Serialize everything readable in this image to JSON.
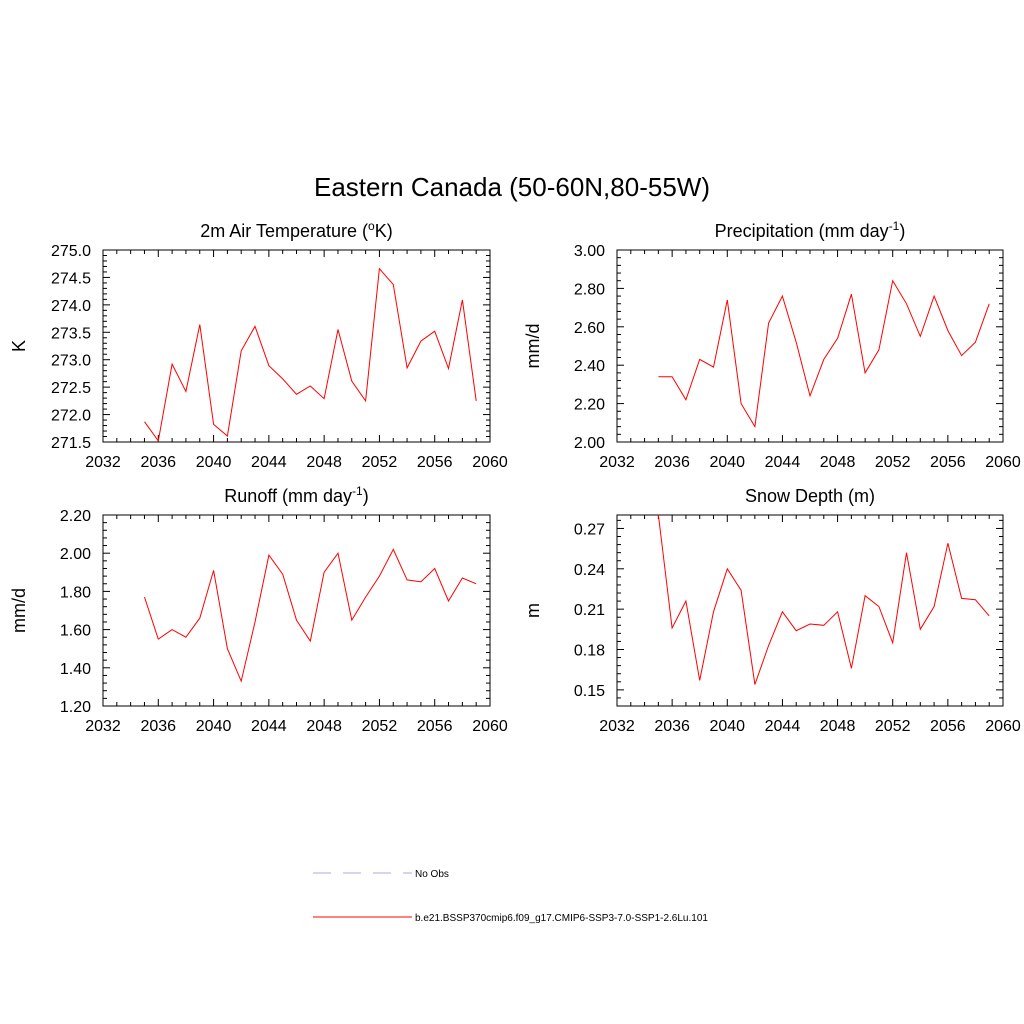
{
  "figure_title": "Eastern Canada (50-60N,80-55W)",
  "chart_data": [
    {
      "type": "line",
      "title": {
        "main": "2m Air Temperature (",
        "sup": "o",
        "tail": "K)"
      },
      "ylabel": "K",
      "xlim": [
        2032,
        2060
      ],
      "ylim": [
        271.5,
        275.0
      ],
      "xticks": [
        2032,
        2036,
        2040,
        2044,
        2048,
        2052,
        2056,
        2060
      ],
      "yticks": [
        271.5,
        272.0,
        272.5,
        273.0,
        273.5,
        274.0,
        274.5,
        275.0
      ],
      "ytick_labels": [
        "271.5",
        "272.0",
        "272.5",
        "273.0",
        "273.5",
        "274.0",
        "274.5",
        "275.0"
      ],
      "x": [
        2035,
        2036,
        2037,
        2038,
        2039,
        2040,
        2041,
        2042,
        2043,
        2044,
        2045,
        2046,
        2047,
        2048,
        2049,
        2050,
        2051,
        2052,
        2053,
        2054,
        2055,
        2056,
        2057,
        2058,
        2059
      ],
      "series": [
        {
          "color": "#ff0000",
          "values": [
            271.87,
            271.52,
            272.92,
            272.42,
            273.64,
            271.82,
            271.61,
            273.16,
            273.61,
            272.89,
            272.65,
            272.37,
            272.52,
            272.29,
            273.55,
            272.61,
            272.25,
            274.66,
            274.37,
            272.85,
            273.34,
            273.52,
            272.84,
            274.09,
            272.25
          ]
        }
      ]
    },
    {
      "type": "line",
      "title": {
        "main": "Precipitation (mm day",
        "sup": "-1",
        "tail": ")"
      },
      "ylabel": "mm/d",
      "xlim": [
        2032,
        2060
      ],
      "ylim": [
        2.0,
        3.0
      ],
      "xticks": [
        2032,
        2036,
        2040,
        2044,
        2048,
        2052,
        2056,
        2060
      ],
      "yticks": [
        2.0,
        2.2,
        2.4,
        2.6,
        2.8,
        3.0
      ],
      "ytick_labels": [
        "2.00",
        "2.20",
        "2.40",
        "2.60",
        "2.80",
        "3.00"
      ],
      "x": [
        2035,
        2036,
        2037,
        2038,
        2039,
        2040,
        2041,
        2042,
        2043,
        2044,
        2045,
        2046,
        2047,
        2048,
        2049,
        2050,
        2051,
        2052,
        2053,
        2054,
        2055,
        2056,
        2057,
        2058,
        2059
      ],
      "series": [
        {
          "color": "#ff0000",
          "values": [
            2.34,
            2.34,
            2.22,
            2.43,
            2.39,
            2.74,
            2.2,
            2.08,
            2.62,
            2.76,
            2.52,
            2.24,
            2.43,
            2.54,
            2.77,
            2.36,
            2.48,
            2.84,
            2.72,
            2.55,
            2.76,
            2.58,
            2.45,
            2.52,
            2.72
          ]
        }
      ]
    },
    {
      "type": "line",
      "title": {
        "main": "Runoff (mm day",
        "sup": "-1",
        "tail": ")"
      },
      "ylabel": "mm/d",
      "xlim": [
        2032,
        2060
      ],
      "ylim": [
        1.2,
        2.2
      ],
      "xticks": [
        2032,
        2036,
        2040,
        2044,
        2048,
        2052,
        2056,
        2060
      ],
      "yticks": [
        1.2,
        1.4,
        1.6,
        1.8,
        2.0,
        2.2
      ],
      "ytick_labels": [
        "1.20",
        "1.40",
        "1.60",
        "1.80",
        "2.00",
        "2.20"
      ],
      "x": [
        2035,
        2036,
        2037,
        2038,
        2039,
        2040,
        2041,
        2042,
        2043,
        2044,
        2045,
        2046,
        2047,
        2048,
        2049,
        2050,
        2051,
        2052,
        2053,
        2054,
        2055,
        2056,
        2057,
        2058,
        2059
      ],
      "series": [
        {
          "color": "#ff0000",
          "values": [
            1.77,
            1.55,
            1.6,
            1.56,
            1.66,
            1.91,
            1.5,
            1.33,
            1.64,
            1.99,
            1.89,
            1.65,
            1.54,
            1.9,
            2.0,
            1.65,
            1.77,
            1.88,
            2.02,
            1.86,
            1.85,
            1.92,
            1.75,
            1.87,
            1.84
          ]
        }
      ]
    },
    {
      "type": "line",
      "title": {
        "main": "Snow Depth (m)",
        "sup": "",
        "tail": ""
      },
      "ylabel": "m",
      "xlim": [
        2032,
        2060
      ],
      "ylim": [
        0.138,
        0.28
      ],
      "xticks": [
        2032,
        2036,
        2040,
        2044,
        2048,
        2052,
        2056,
        2060
      ],
      "yticks": [
        0.15,
        0.18,
        0.21,
        0.24,
        0.27
      ],
      "ytick_labels": [
        "0.15",
        "0.18",
        "0.21",
        "0.24",
        "0.27"
      ],
      "x": [
        2035,
        2036,
        2037,
        2038,
        2039,
        2040,
        2041,
        2042,
        2043,
        2044,
        2045,
        2046,
        2047,
        2048,
        2049,
        2050,
        2051,
        2052,
        2053,
        2054,
        2055,
        2056,
        2057,
        2058,
        2059
      ],
      "series": [
        {
          "color": "#ff0000",
          "values": [
            0.28,
            0.196,
            0.216,
            0.157,
            0.208,
            0.24,
            0.224,
            0.154,
            0.183,
            0.208,
            0.194,
            0.199,
            0.198,
            0.208,
            0.166,
            0.22,
            0.212,
            0.185,
            0.252,
            0.195,
            0.212,
            0.259,
            0.218,
            0.217,
            0.205
          ]
        }
      ]
    }
  ],
  "legend": {
    "items": [
      {
        "label": "No Obs",
        "color": "#aaaaee",
        "style": "dashed"
      },
      {
        "label": "b.e21.BSSP370cmip6.f09_g17.CMIP6-SSP3-7.0-SSP1-2.6Lu.101",
        "color": "#ff0000",
        "style": "solid"
      }
    ]
  }
}
